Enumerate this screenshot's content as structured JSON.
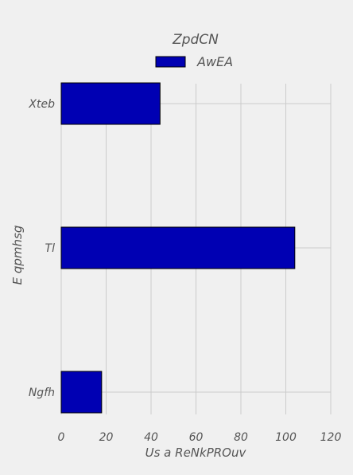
{
  "chart_data": {
    "type": "bar",
    "orientation": "horizontal",
    "legend_title": "ZpdCN",
    "legend_position": "top-center",
    "categories": [
      "Xteb",
      "Tl",
      "Ngfh"
    ],
    "series": [
      {
        "name": "AwEA",
        "values": [
          44,
          104,
          18
        ],
        "color": "#0000b3"
      }
    ],
    "xlabel": "Us a ReNkPROuv",
    "ylabel": "E qpmhsg",
    "xlim": [
      0,
      120
    ],
    "xticks": [
      0,
      20,
      40,
      60,
      80,
      100,
      120
    ],
    "grid": true,
    "background": "#f0f0f0"
  }
}
